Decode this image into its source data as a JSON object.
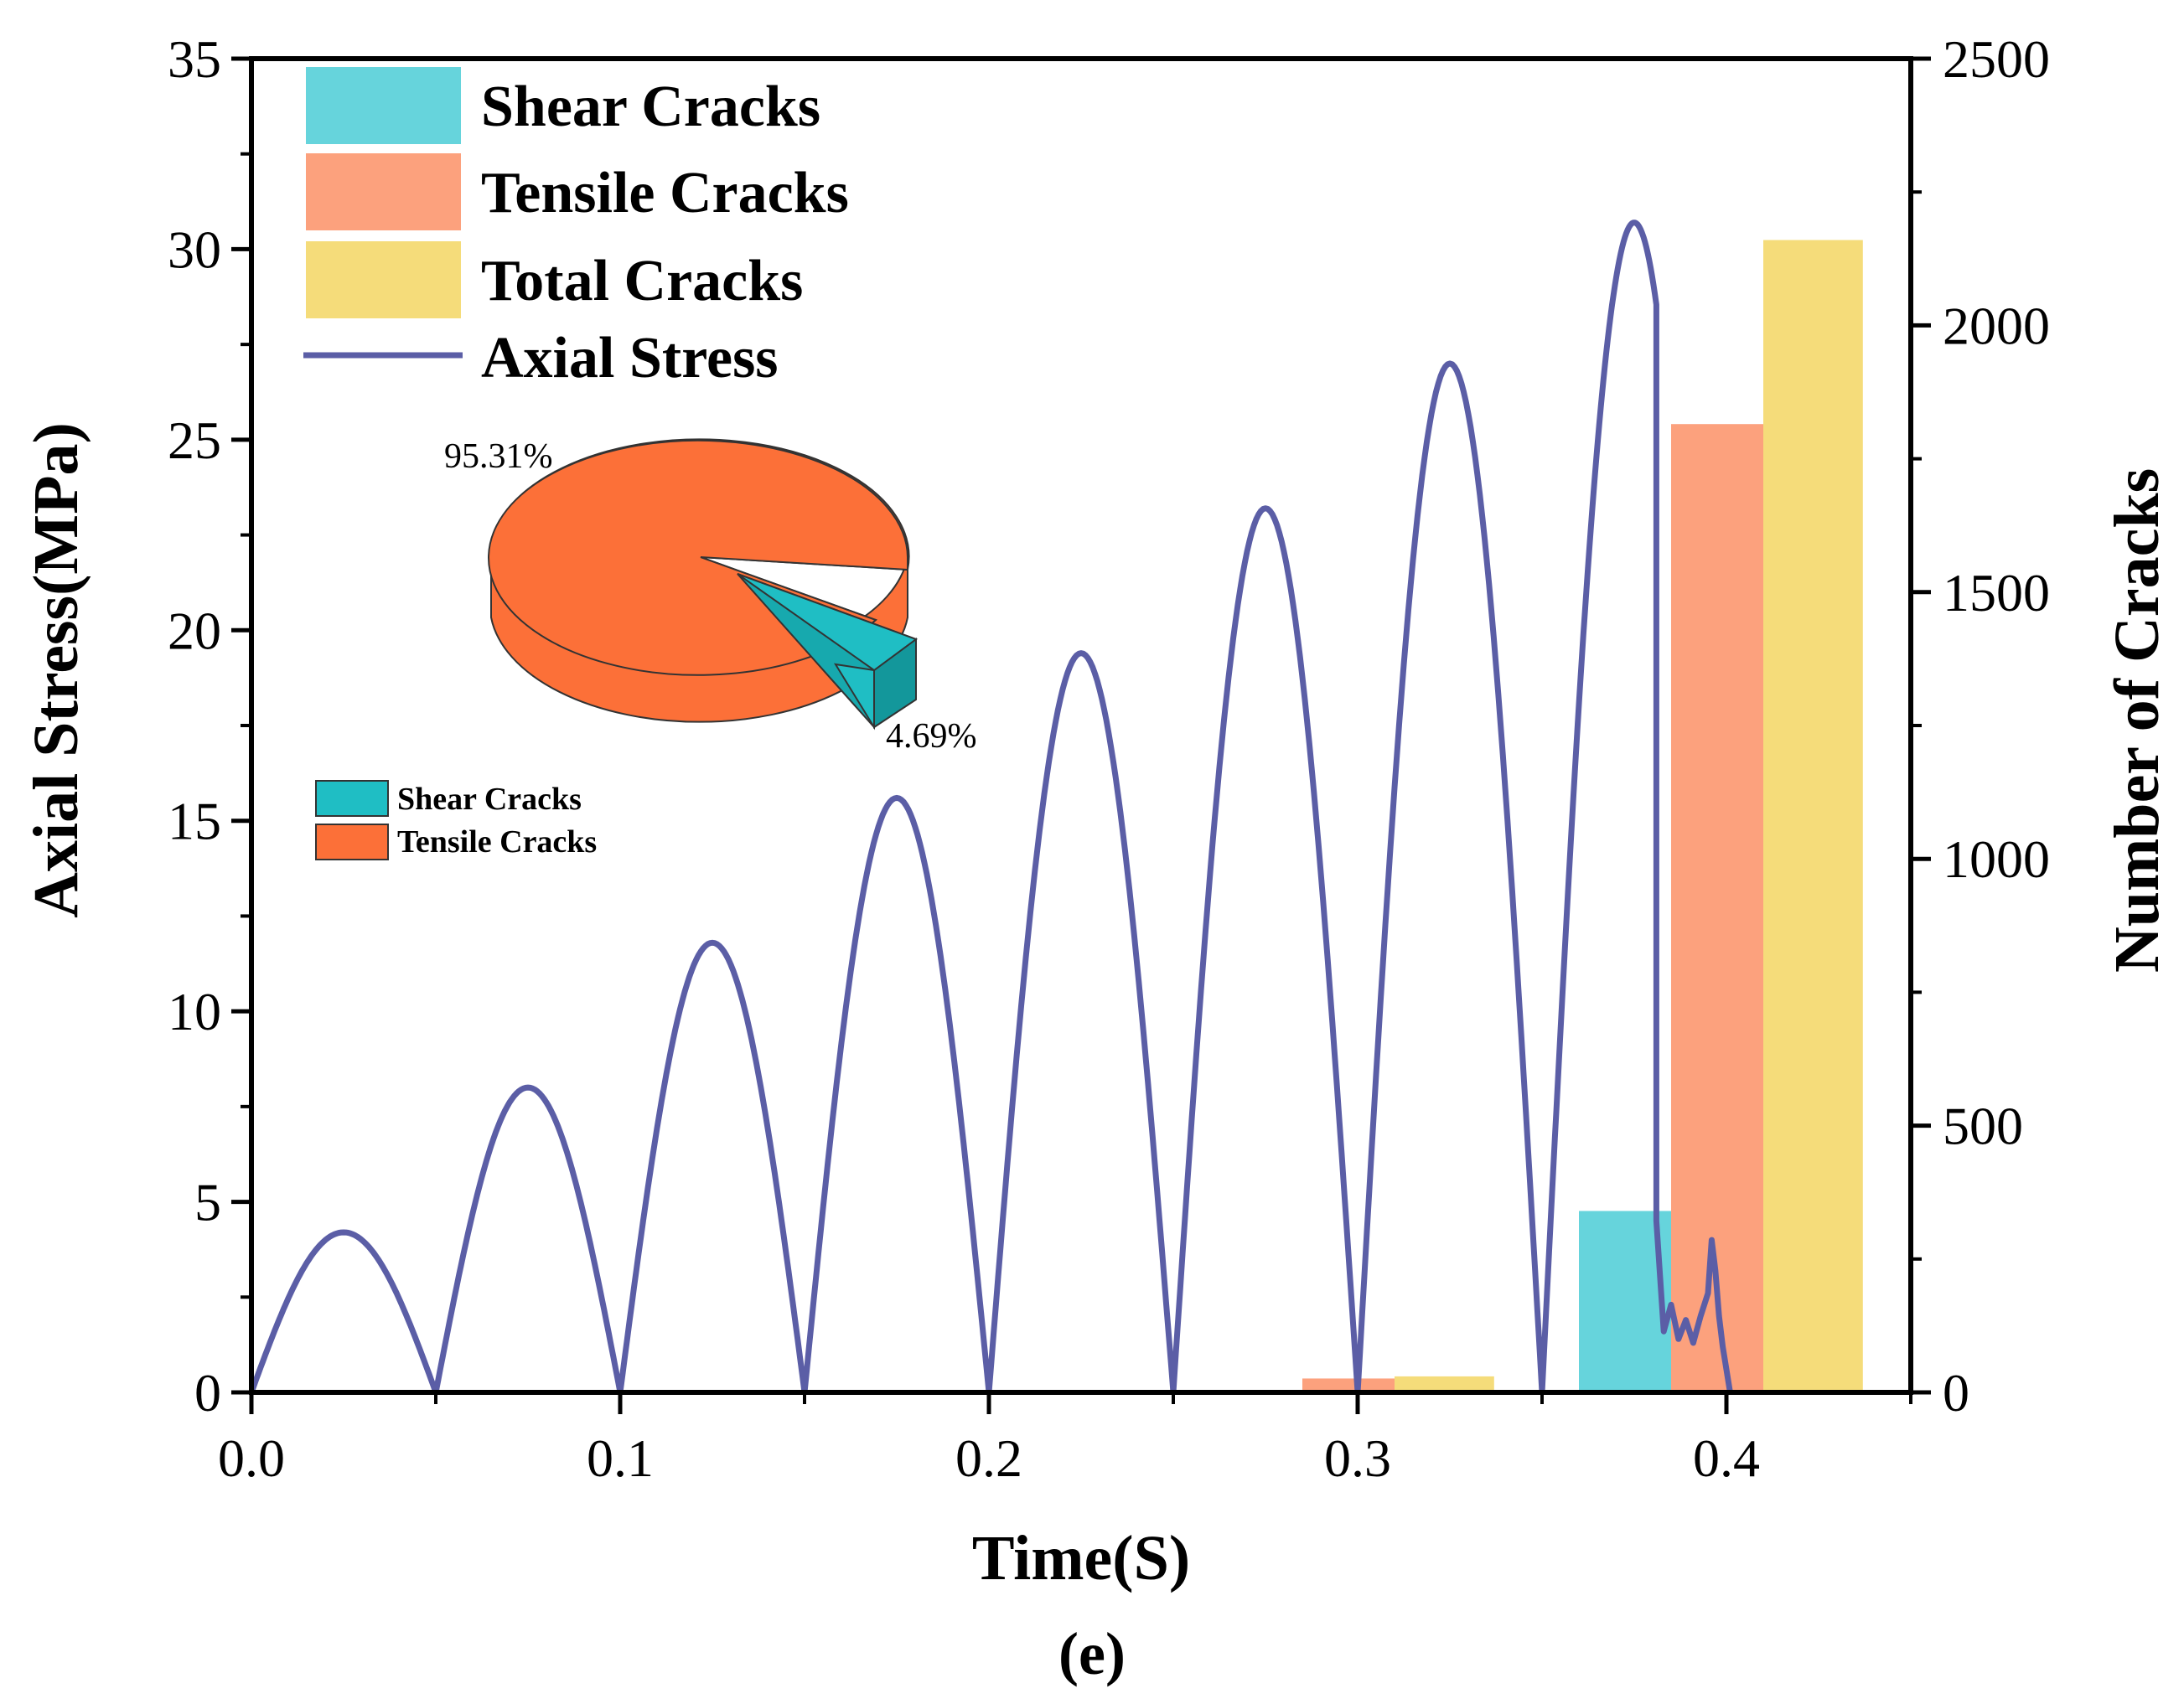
{
  "chart_data": {
    "type": "bar+line",
    "panel_label": "(e)",
    "xlabel": "Time(S)",
    "ylabel_left": "Axial Stress(MPa)",
    "ylabel_right": "Number of Cracks",
    "xlim": [
      0.0,
      0.45
    ],
    "ylim_left": [
      0,
      35
    ],
    "ylim_right": [
      0,
      2500
    ],
    "x_ticks": [
      0.0,
      0.1,
      0.2,
      0.3,
      0.4
    ],
    "x_tick_labels": [
      "0.0",
      "0.1",
      "0.2",
      "0.3",
      "0.4"
    ],
    "y_left_ticks": [
      0,
      5,
      10,
      15,
      20,
      25,
      30,
      35
    ],
    "y_left_tick_labels": [
      "0",
      "5",
      "10",
      "15",
      "20",
      "25",
      "30",
      "35"
    ],
    "y_right_ticks": [
      0,
      500,
      1000,
      1500,
      2000,
      2500
    ],
    "y_right_tick_labels": [
      "0",
      "500",
      "1000",
      "1500",
      "2000",
      "2500"
    ],
    "axial_stress": {
      "name": "Axial Stress",
      "color": "#5B5EA6",
      "cycle_period": 0.05,
      "cycle_peaks": [
        4.2,
        8.0,
        11.8,
        15.6,
        19.4,
        23.2,
        27.0,
        30.7
      ],
      "post_peak_tail": [
        {
          "t": 0.381,
          "s": 4.5
        },
        {
          "t": 0.383,
          "s": 1.6
        },
        {
          "t": 0.385,
          "s": 2.3
        },
        {
          "t": 0.387,
          "s": 1.4
        },
        {
          "t": 0.389,
          "s": 1.9
        },
        {
          "t": 0.391,
          "s": 1.3
        },
        {
          "t": 0.393,
          "s": 2.0
        },
        {
          "t": 0.395,
          "s": 2.6
        },
        {
          "t": 0.396,
          "s": 4.0
        },
        {
          "t": 0.397,
          "s": 3.2
        },
        {
          "t": 0.398,
          "s": 2.0
        },
        {
          "t": 0.399,
          "s": 1.2
        },
        {
          "t": 0.4,
          "s": 0.6
        },
        {
          "t": 0.401,
          "s": 0.0
        }
      ]
    },
    "bar_series": [
      {
        "name": "Shear Cracks",
        "color": "#66D4DC",
        "x": [
          0.2735,
          0.3735
        ],
        "values": [
          3,
          340
        ]
      },
      {
        "name": "Tensile Cracks",
        "color": "#FCA17D",
        "x": [
          0.2985,
          0.3985
        ],
        "values": [
          26,
          1815
        ]
      },
      {
        "name": "Total Cracks",
        "color": "#F5DC7A",
        "x": [
          0.3235,
          0.4235
        ],
        "values": [
          30,
          2160
        ]
      }
    ],
    "bar_width": 0.027,
    "legend": {
      "position": "top-left",
      "entries": [
        "Shear Cracks",
        "Tensile Cracks",
        "Total Cracks",
        "Axial Stress"
      ]
    },
    "inset_pie": {
      "type": "pie-3d",
      "slices": [
        {
          "name": "Tensile Cracks",
          "percent": 95.31,
          "label": "95.31%",
          "color": "#FC7038"
        },
        {
          "name": "Shear Cracks",
          "percent": 4.69,
          "label": "4.69%",
          "color": "#1FBEC4"
        }
      ],
      "legend": [
        "Shear Cracks",
        "Tensile Cracks"
      ]
    }
  }
}
